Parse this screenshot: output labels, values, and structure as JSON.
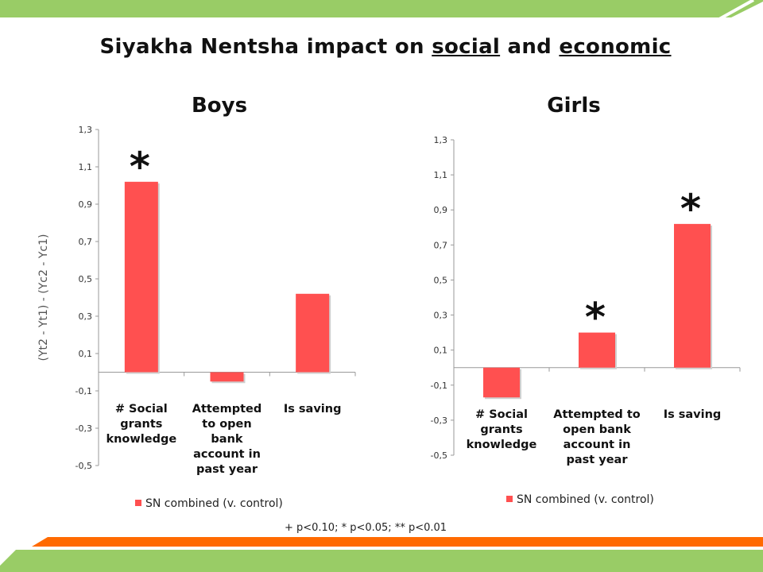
{
  "slide": {
    "title_prefix": "Siyakha Nentsha impact on ",
    "title_word1": "social",
    "title_mid": " and ",
    "title_word2": "economic",
    "footnote": "+ p<0.10;   * p<0.05;   ** p<0.01"
  },
  "colors": {
    "bar": "#ff5050",
    "band_green": "#99cc66",
    "band_orange": "#ff6a00"
  },
  "chart_data": [
    {
      "type": "bar",
      "title": "Boys",
      "ylabel": "(Yt2 - Yt1) - (Yc2 - Yc1)",
      "categories": [
        [
          "# Social",
          "grants",
          "knowledge"
        ],
        [
          "Attempted",
          "to open",
          "bank",
          "account in",
          "past year"
        ],
        [
          "Is saving"
        ]
      ],
      "series": [
        {
          "name": "SN combined (v. control)",
          "values": [
            1.02,
            -0.05,
            0.42
          ]
        }
      ],
      "significance": [
        "*",
        "",
        ""
      ],
      "ylim": [
        -0.5,
        1.3
      ],
      "yticks": [
        "1,3",
        "1,1",
        "0,9",
        "0,7",
        "0,5",
        "0,3",
        "0,1",
        "-0,1",
        "-0,3",
        "-0,5"
      ],
      "legend_position": "bottom"
    },
    {
      "type": "bar",
      "title": "Girls",
      "ylabel": "",
      "categories": [
        [
          "# Social",
          "grants",
          "knowledge"
        ],
        [
          "Attempted to",
          "open bank",
          "account in",
          "past year"
        ],
        [
          "Is saving"
        ]
      ],
      "series": [
        {
          "name": "SN combined (v. control)",
          "values": [
            -0.17,
            0.2,
            0.82
          ]
        }
      ],
      "significance": [
        "",
        "*",
        "*"
      ],
      "ylim": [
        -0.5,
        1.3
      ],
      "yticks": [
        "1,3",
        "1,1",
        "0,9",
        "0,7",
        "0,5",
        "0,3",
        "0,1",
        "-0,1",
        "-0,3",
        "-0,5"
      ],
      "legend_position": "bottom"
    }
  ]
}
